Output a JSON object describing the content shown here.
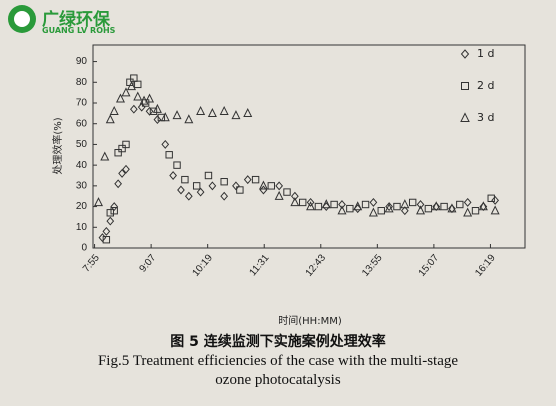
{
  "logo": {
    "name": "广绿环保",
    "sub": "GUANG LV ROHS"
  },
  "chart_data": {
    "type": "scatter",
    "title": "图 5 连续监测下实施案例处理效率",
    "subtitle": "Fig.5 Treatment efficiencies of the case with the multi-stage ozone photocatalysis",
    "x_label": "时间(HH:MM)",
    "y_label": "处理效率(%)",
    "xlim": [
      473,
      1023
    ],
    "ylim": [
      0,
      98
    ],
    "xticks": [
      {
        "value": 475,
        "label": "7:55"
      },
      {
        "value": 547,
        "label": "9:07"
      },
      {
        "value": 619,
        "label": "10:19"
      },
      {
        "value": 691,
        "label": "11:31"
      },
      {
        "value": 763,
        "label": "12:43"
      },
      {
        "value": 835,
        "label": "13:55"
      },
      {
        "value": 907,
        "label": "15:07"
      },
      {
        "value": 979,
        "label": "16:19"
      }
    ],
    "yticks": [
      0,
      10,
      20,
      30,
      40,
      50,
      60,
      70,
      80,
      90
    ],
    "legend": "upper right",
    "series": [
      {
        "name": "1 d",
        "color": "#333333",
        "marker": "diamond",
        "x": [
          485,
          490,
          495,
          500,
          505,
          510,
          515,
          525,
          535,
          545,
          555,
          565,
          575,
          585,
          595,
          610,
          625,
          640,
          655,
          670,
          690,
          710,
          730,
          750,
          770,
          790,
          810,
          830,
          850,
          870,
          890,
          910,
          930,
          950,
          970,
          985
        ],
        "values": [
          5,
          8,
          13,
          20,
          31,
          36,
          38,
          67,
          68,
          66,
          62,
          50,
          35,
          28,
          25,
          27,
          30,
          25,
          30,
          33,
          28,
          30,
          25,
          22,
          20,
          21,
          19,
          22,
          20,
          18,
          21,
          20,
          19,
          22,
          20,
          23
        ]
      },
      {
        "name": "2 d",
        "color": "#333333",
        "marker": "square",
        "x": [
          490,
          495,
          500,
          505,
          510,
          515,
          520,
          525,
          530,
          540,
          550,
          560,
          570,
          580,
          590,
          605,
          620,
          640,
          660,
          680,
          700,
          720,
          740,
          760,
          780,
          800,
          820,
          840,
          860,
          880,
          900,
          920,
          940,
          960,
          980
        ],
        "values": [
          4,
          17,
          18,
          46,
          48,
          50,
          80,
          82,
          79,
          70,
          66,
          63,
          45,
          40,
          33,
          30,
          35,
          32,
          28,
          33,
          30,
          27,
          22,
          20,
          21,
          19,
          21,
          18,
          20,
          22,
          19,
          20,
          21,
          18,
          24
        ]
      },
      {
        "name": "3 d",
        "color": "#333333",
        "marker": "triangle",
        "x": [
          480,
          488,
          495,
          500,
          508,
          515,
          522,
          530,
          538,
          545,
          555,
          565,
          580,
          595,
          610,
          625,
          640,
          655,
          670,
          690,
          710,
          730,
          750,
          770,
          790,
          810,
          830,
          850,
          870,
          890,
          910,
          930,
          950,
          970,
          985
        ],
        "values": [
          22,
          44,
          62,
          66,
          72,
          75,
          78,
          73,
          71,
          72,
          67,
          63,
          64,
          62,
          66,
          65,
          66,
          64,
          65,
          30,
          25,
          22,
          20,
          21,
          18,
          20,
          17,
          19,
          21,
          18,
          20,
          19,
          17,
          20,
          18
        ]
      }
    ]
  }
}
